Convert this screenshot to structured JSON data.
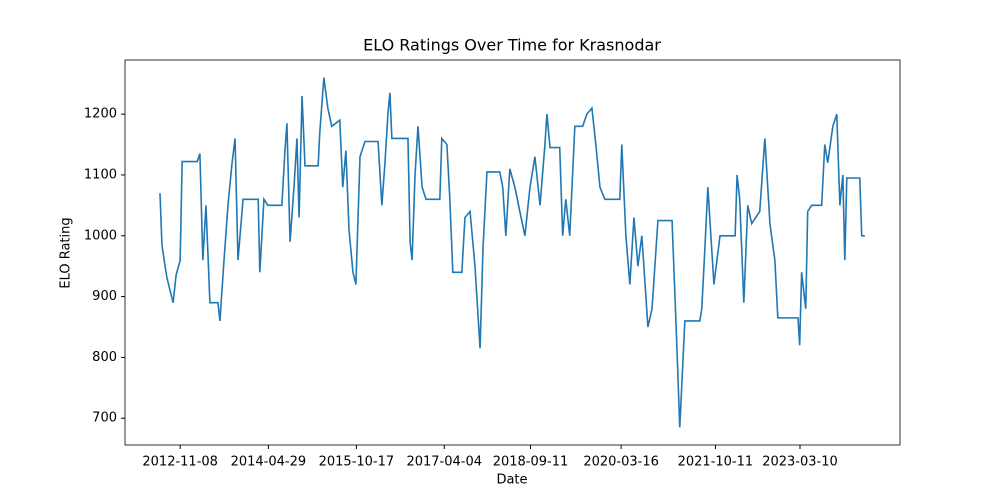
{
  "chart_data": {
    "type": "line",
    "title": "ELO Ratings Over Time for Krasnodar",
    "x_label": "Date",
    "y_label": "ELO Rating",
    "x": [
      "2012-07-08",
      "2012-07-20",
      "2012-08-08",
      "2012-08-20",
      "2012-09-26",
      "2012-10-14",
      "2012-11-08",
      "2012-11-20",
      "2013-02-20",
      "2013-03-08",
      "2013-03-26",
      "2013-04-14",
      "2013-05-08",
      "2013-06-26",
      "2013-07-08",
      "2013-08-02",
      "2013-08-26",
      "2013-09-20",
      "2013-10-08",
      "2013-10-26",
      "2013-11-26",
      "2014-02-26",
      "2014-03-08",
      "2014-04-02",
      "2014-04-26",
      "2014-07-20",
      "2014-08-08",
      "2014-08-20",
      "2014-09-08",
      "2014-10-02",
      "2014-10-20",
      "2014-11-02",
      "2014-11-20",
      "2014-12-08",
      "2015-02-26",
      "2015-03-08",
      "2015-04-02",
      "2015-04-26",
      "2015-05-20",
      "2015-07-08",
      "2015-07-26",
      "2015-08-14",
      "2015-09-02",
      "2015-09-26",
      "2015-10-14",
      "2015-11-08",
      "2015-12-08",
      "2016-02-26",
      "2016-03-20",
      "2016-04-08",
      "2016-04-26",
      "2016-05-08",
      "2016-05-20",
      "2016-08-26",
      "2016-09-08",
      "2016-09-20",
      "2016-10-08",
      "2016-10-26",
      "2016-11-20",
      "2016-12-14",
      "2017-03-08",
      "2017-03-20",
      "2017-04-20",
      "2017-05-08",
      "2017-05-26",
      "2017-07-20",
      "2017-08-08",
      "2017-09-08",
      "2017-10-08",
      "2017-11-08",
      "2017-11-26",
      "2017-12-20",
      "2018-03-08",
      "2018-03-26",
      "2018-04-14",
      "2018-05-08",
      "2018-06-08",
      "2018-07-08",
      "2018-08-08",
      "2018-09-08",
      "2018-10-08",
      "2018-11-08",
      "2018-12-08",
      "2018-12-20",
      "2019-01-08",
      "2019-03-08",
      "2019-03-26",
      "2019-04-14",
      "2019-05-08",
      "2019-06-08",
      "2019-07-26",
      "2019-08-20",
      "2019-09-20",
      "2019-10-14",
      "2019-11-08",
      "2019-12-08",
      "2020-03-08",
      "2020-03-20",
      "2020-04-14",
      "2020-05-08",
      "2020-06-02",
      "2020-06-26",
      "2020-07-20",
      "2020-08-26",
      "2020-09-20",
      "2020-10-26",
      "2021-01-20",
      "2021-02-14",
      "2021-03-08",
      "2021-04-08",
      "2021-07-08",
      "2021-07-20",
      "2021-08-08",
      "2021-08-26",
      "2021-10-02",
      "2021-11-08",
      "2022-02-08",
      "2022-02-20",
      "2022-03-08",
      "2022-04-02",
      "2022-04-26",
      "2022-05-20",
      "2022-07-08",
      "2022-08-08",
      "2022-09-08",
      "2022-10-08",
      "2022-10-26",
      "2023-02-26",
      "2023-03-08",
      "2023-03-20",
      "2023-04-14",
      "2023-04-26",
      "2023-05-20",
      "2023-07-20",
      "2023-08-08",
      "2023-08-26",
      "2023-09-26",
      "2023-10-20",
      "2023-11-08",
      "2023-11-26",
      "2023-12-08",
      "2023-12-20",
      "2024-03-08",
      "2024-03-20",
      "2024-04-08"
    ],
    "series": [
      {
        "name": "Krasnodar",
        "color": "#1f77b4",
        "values": [
          1070,
          985,
          950,
          930,
          890,
          935,
          960,
          1122,
          1122,
          1135,
          960,
          1050,
          890,
          890,
          860,
          960,
          1050,
          1120,
          1160,
          960,
          1060,
          1060,
          940,
          1060,
          1050,
          1050,
          1140,
          1185,
          990,
          1080,
          1160,
          1030,
          1230,
          1115,
          1115,
          1170,
          1260,
          1210,
          1180,
          1190,
          1080,
          1140,
          1010,
          940,
          920,
          1130,
          1155,
          1155,
          1050,
          1120,
          1200,
          1235,
          1160,
          1160,
          990,
          960,
          1100,
          1180,
          1080,
          1060,
          1060,
          1160,
          1150,
          1060,
          940,
          940,
          1030,
          1040,
          950,
          815,
          980,
          1105,
          1105,
          1080,
          1000,
          1110,
          1080,
          1040,
          1000,
          1080,
          1130,
          1050,
          1150,
          1200,
          1145,
          1145,
          1000,
          1060,
          1000,
          1180,
          1180,
          1200,
          1210,
          1150,
          1080,
          1060,
          1060,
          1150,
          1000,
          920,
          1030,
          950,
          1000,
          850,
          880,
          1025,
          1025,
          850,
          685,
          860,
          860,
          880,
          980,
          1080,
          920,
          1000,
          1000,
          1100,
          1060,
          890,
          1050,
          1020,
          1040,
          1160,
          1020,
          960,
          865,
          865,
          820,
          940,
          880,
          1040,
          1050,
          1050,
          1150,
          1120,
          1180,
          1200,
          1050,
          1100,
          960,
          1095,
          1095,
          1000,
          1000
        ]
      }
    ],
    "xlim": [
      "2011-12-08",
      "2024-11-08"
    ],
    "xticks": [
      "2012-11-08",
      "2014-04-29",
      "2015-10-17",
      "2017-04-04",
      "2018-09-11",
      "2020-03-16",
      "2021-10-11",
      "2023-03-10"
    ],
    "ylim": [
      656,
      1289
    ],
    "yticks": [
      700,
      800,
      900,
      1000,
      1100,
      1200
    ]
  }
}
